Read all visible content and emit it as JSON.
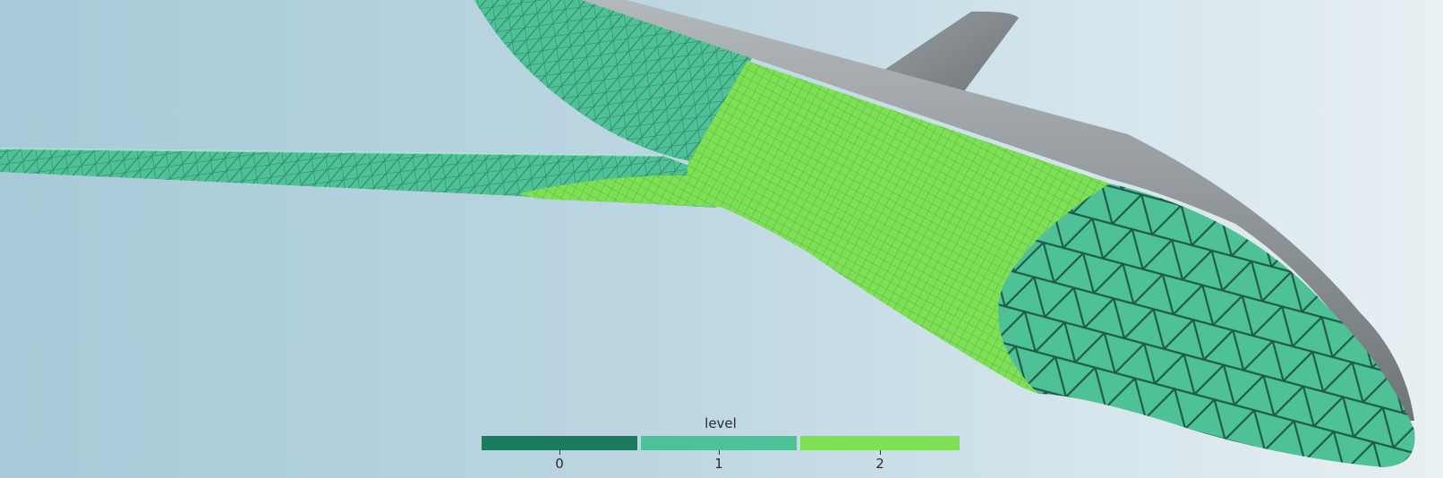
{
  "scene": {
    "colors": {
      "level0": "#1a7a5e",
      "level1": "#4fc196",
      "level2": "#7ee055",
      "fuselage_shell": "#8a9094",
      "mesh_line": "#0f3d30"
    },
    "legend": {
      "title": "level",
      "entries": [
        {
          "label": "0",
          "color": "#1a7a5e"
        },
        {
          "label": "1",
          "color": "#4fc196"
        },
        {
          "label": "2",
          "color": "#7ee055"
        }
      ]
    }
  }
}
